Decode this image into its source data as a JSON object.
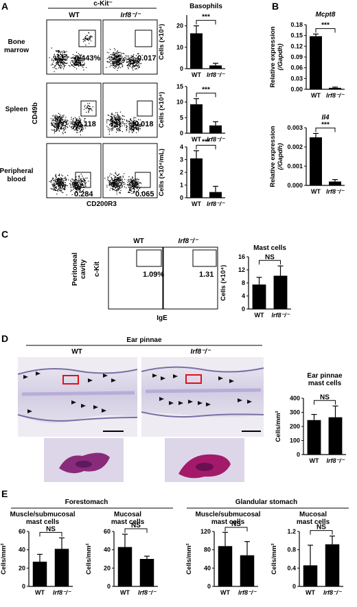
{
  "panels": {
    "A": {
      "letter": "A",
      "header": "c-Kit⁻",
      "col_wt": "WT",
      "col_ko": "Irf8⁻/⁻",
      "rows": [
        {
          "label_l1": "Bone",
          "label_l2": "marrow",
          "wt_pct": "0.443%",
          "ko_pct": "0.017"
        },
        {
          "label_l1": "Spleen",
          "label_l2": "",
          "wt_pct": "0.118",
          "ko_pct": "0.018"
        },
        {
          "label_l1": "Peripheral",
          "label_l2": "blood",
          "wt_pct": "0.284",
          "ko_pct": "0.065"
        }
      ],
      "ylabel_flow": "CD49b",
      "xlabel_flow": "CD200R3",
      "basophil_title": "Basophils"
    },
    "B": {
      "letter": "B"
    },
    "C": {
      "letter": "C",
      "col_wt": "WT",
      "col_ko": "Irf8⁻/⁻",
      "row_l1": "Peritoneal",
      "row_l2": "cavity",
      "ylabel_flow": "c-Kit",
      "xlabel_flow": "IgE",
      "wt_pct": "1.09%",
      "ko_pct": "1.31"
    },
    "D": {
      "letter": "D",
      "title": "Ear pinnae",
      "col_wt": "WT",
      "col_ko": "Irf8⁻/⁻"
    },
    "E": {
      "letter": "E",
      "group1": "Forestomach",
      "group2": "Glandular stomach"
    }
  },
  "chart_data": [
    {
      "id": "A-bm",
      "type": "bar",
      "categories": [
        "WT",
        "Irf8⁻/⁻"
      ],
      "values": [
        16.5,
        1.5
      ],
      "errors": [
        3.5,
        1.0
      ],
      "title": "Basophils",
      "ylabel": "Cells (×10⁴)",
      "ylim": [
        0,
        25
      ],
      "yticks": [
        "0",
        "10",
        "20"
      ],
      "sig": "***"
    },
    {
      "id": "A-spl",
      "type": "bar",
      "categories": [
        "WT",
        "Irf8⁻/⁻"
      ],
      "values": [
        9.3,
        2.5
      ],
      "errors": [
        1.8,
        1.2
      ],
      "title": "",
      "ylabel": "Cells (×10⁴)",
      "ylim": [
        0,
        15
      ],
      "yticks": [
        "0",
        "5",
        "10",
        "15"
      ],
      "sig": "***"
    },
    {
      "id": "A-pb",
      "type": "bar",
      "categories": [
        "WT",
        "Irf8⁻/⁻"
      ],
      "values": [
        3.1,
        0.45
      ],
      "errors": [
        0.6,
        0.45
      ],
      "title": "",
      "ylabel": "Cells (×10⁴/mL)",
      "ylim": [
        0,
        4
      ],
      "yticks": [
        "0",
        "1",
        "2",
        "3",
        "4"
      ],
      "sig": "***"
    },
    {
      "id": "B-mcpt8",
      "type": "bar",
      "categories": [
        "WT",
        "Irf8⁻/⁻"
      ],
      "values": [
        0.148,
        0.004
      ],
      "errors": [
        0.006,
        0.002
      ],
      "title": "Mcpt8",
      "ylabel": "Relative expression (/Gapdh)",
      "ylim": [
        0,
        0.18
      ],
      "yticks": [
        "0.00",
        "0.03",
        "0.06",
        "0.09",
        "0.12",
        "0.15",
        "0.18"
      ],
      "sig": "***"
    },
    {
      "id": "B-il4",
      "type": "bar",
      "categories": [
        "WT",
        "Irf8⁻/⁻"
      ],
      "values": [
        0.0025,
        0.0002
      ],
      "errors": [
        0.0002,
        0.0001
      ],
      "title": "Il4",
      "ylabel": "Relative expression (/Gapdh)",
      "ylim": [
        0,
        0.003
      ],
      "yticks": [
        "0.000",
        "0.001",
        "0.002",
        "0.003"
      ],
      "sig": "***"
    },
    {
      "id": "C-mast",
      "type": "bar",
      "categories": [
        "WT",
        "Irf8⁻/⁻"
      ],
      "values": [
        7.5,
        10.2
      ],
      "errors": [
        2.2,
        3.0
      ],
      "title": "Mast cells",
      "ylabel": "Cells (×10⁴)",
      "ylim": [
        0,
        16
      ],
      "yticks": [
        "0",
        "4",
        "8",
        "12",
        "16"
      ],
      "sig": "NS"
    },
    {
      "id": "D-ear",
      "type": "bar",
      "categories": [
        "WT",
        "Irf8⁻/⁻"
      ],
      "values": [
        245,
        265
      ],
      "errors": [
        40,
        80
      ],
      "title": "Ear pinnae mast cells",
      "ylabel": "Cells/mm²",
      "ylim": [
        0,
        400
      ],
      "yticks": [
        "0",
        "100",
        "200",
        "300",
        "400"
      ],
      "sig": "NS"
    },
    {
      "id": "E-fs-mus",
      "type": "bar",
      "categories": [
        "WT",
        "Irf8⁻/⁻"
      ],
      "values": [
        27,
        41
      ],
      "errors": [
        8,
        12
      ],
      "title": "Muscle/submucosal mast cells",
      "ylabel": "Cells/mm²",
      "ylim": [
        0,
        60
      ],
      "yticks": [
        "0",
        "20",
        "40",
        "60"
      ],
      "sig": "NS"
    },
    {
      "id": "E-fs-muc",
      "type": "bar",
      "categories": [
        "WT",
        "Irf8⁻/⁻"
      ],
      "values": [
        43,
        30
      ],
      "errors": [
        14,
        3
      ],
      "title": "Mucosal mast cells",
      "ylabel": "Cells/mm²",
      "ylim": [
        0,
        60
      ],
      "yticks": [
        "0",
        "20",
        "40",
        "60"
      ],
      "sig": "NS"
    },
    {
      "id": "E-gs-mus",
      "type": "bar",
      "categories": [
        "WT",
        "Irf8⁻/⁻"
      ],
      "values": [
        88,
        68
      ],
      "errors": [
        30,
        30
      ],
      "title": "Muscle/submucosal mast cells",
      "ylabel": "Cells/mm²",
      "ylim": [
        0,
        120
      ],
      "yticks": [
        "0",
        "40",
        "80",
        "120"
      ],
      "sig": "NS"
    },
    {
      "id": "E-gs-muc",
      "type": "bar",
      "categories": [
        "WT",
        "Irf8⁻/⁻"
      ],
      "values": [
        0.46,
        0.92
      ],
      "errors": [
        0.44,
        0.18
      ],
      "title": "Mucosal mast cells",
      "ylabel": "Cells/mm²",
      "ylim": [
        0,
        1.2
      ],
      "yticks": [
        "0",
        "0.4",
        "0.8",
        "1.2"
      ],
      "sig": "NS"
    }
  ]
}
